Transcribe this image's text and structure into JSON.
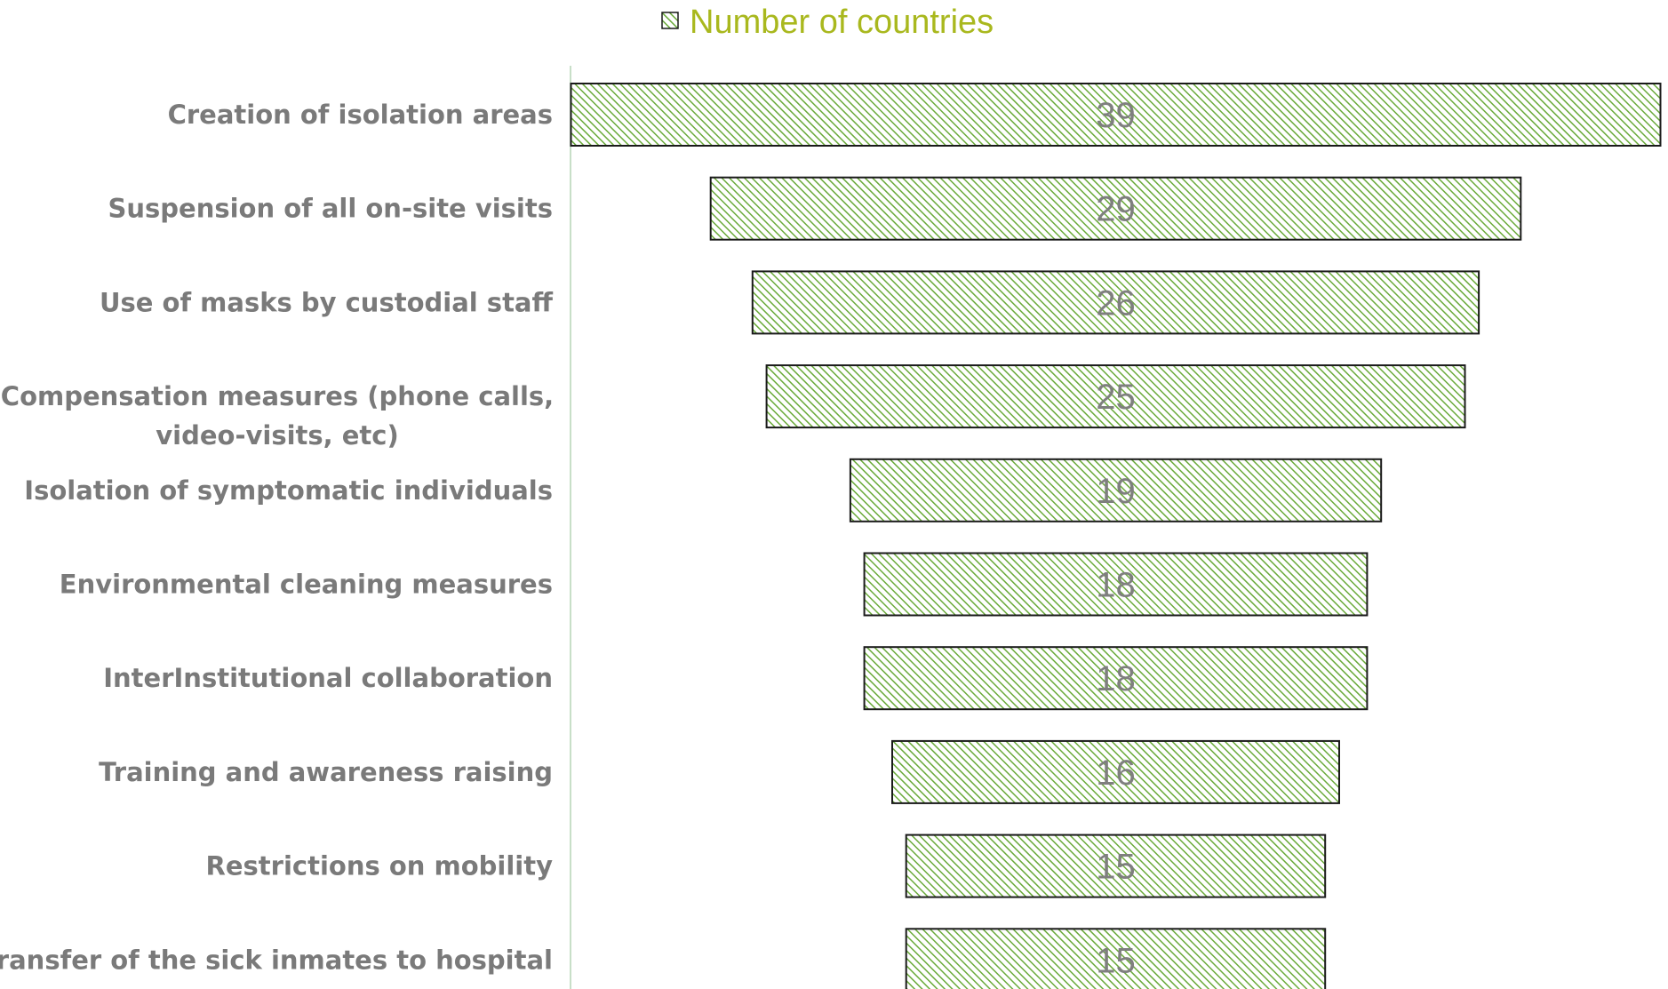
{
  "chart_data": {
    "type": "bar",
    "orientation": "horizontal",
    "layout": "funnel",
    "title": "",
    "xlabel": "",
    "ylabel": "",
    "legend": {
      "position": "top-center",
      "entries": [
        "Number of countries"
      ]
    },
    "grid": false,
    "xlim": [
      0,
      39
    ],
    "categories": [
      "Creation of isolation areas",
      "Suspension of all on-site visits",
      "Use of masks by custodial staff",
      "Compensation measures (phone calls, video-visits, etc)",
      "Isolation of symptomatic individuals",
      "Environmental cleaning measures",
      "InterInstitutional collaboration",
      "Training and awareness raising",
      "Restrictions on mobility",
      "Transfer of the sick inmates to hospital"
    ],
    "series": [
      {
        "name": "Number of countries",
        "values": [
          39,
          29,
          26,
          25,
          19,
          18,
          18,
          16,
          15,
          15
        ]
      }
    ],
    "colors": {
      "bar_hatch": "#6aaa3a",
      "bar_fill": "#ffffff",
      "bar_border": "#1a1a1a",
      "legend_text": "#a9b81e",
      "category_text": "#7a7a7a",
      "data_label_text": "#7f7f7f",
      "axis_line": "#c8dfc8"
    }
  }
}
